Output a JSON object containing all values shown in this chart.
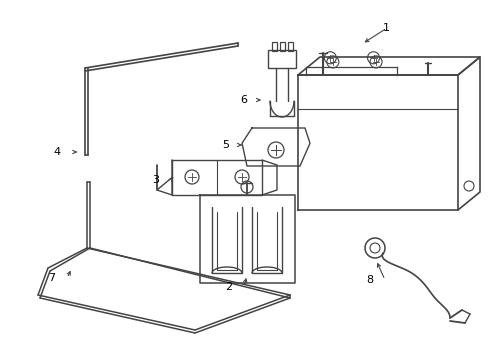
{
  "bg_color": "#ffffff",
  "line_color": "#444444",
  "label_color": "#000000",
  "lw": 1.0,
  "figsize": [
    4.9,
    3.6
  ],
  "dpi": 100
}
